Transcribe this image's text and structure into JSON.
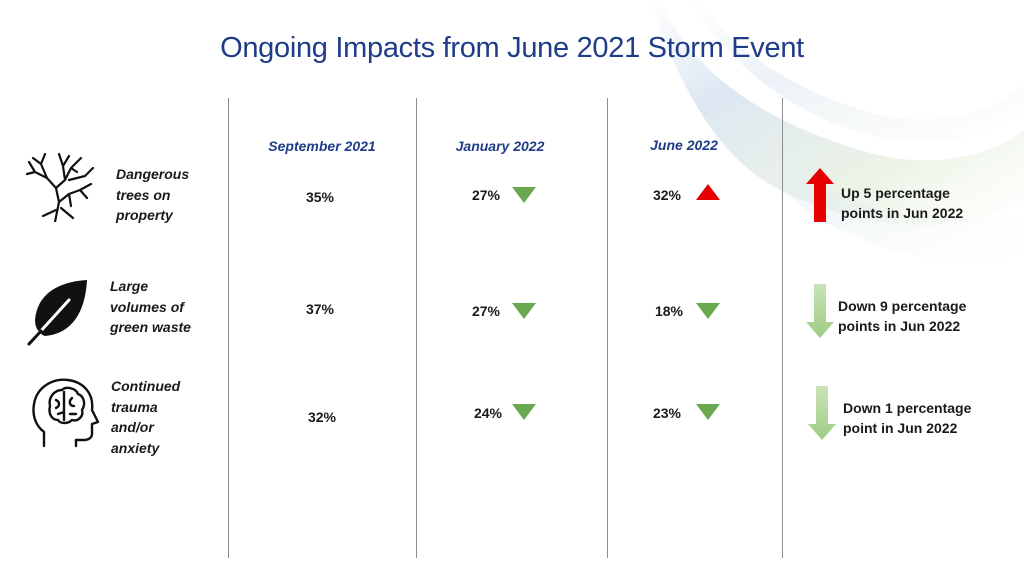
{
  "slide": {
    "title": "Ongoing Impacts from June 2021 Storm Event"
  },
  "columns": [
    {
      "label": "September 2021"
    },
    {
      "label": "January 2022"
    },
    {
      "label": "June 2022"
    }
  ],
  "rows": [
    {
      "icon": "dead-tree-icon",
      "label_lines": [
        "Dangerous",
        "trees on",
        "property"
      ],
      "values": [
        "35%",
        "27%",
        "32%"
      ],
      "trend": [
        null,
        "down",
        "up"
      ],
      "summary_lines": [
        "Up 5 percentage",
        "points in Jun 2022"
      ],
      "summary_direction": "up"
    },
    {
      "icon": "leaf-icon",
      "label_lines": [
        "Large",
        "volumes of",
        "green waste"
      ],
      "values": [
        "37%",
        "27%",
        "18%"
      ],
      "trend": [
        null,
        "down",
        "down"
      ],
      "summary_lines": [
        "Down 9 percentage",
        "points in Jun 2022"
      ],
      "summary_direction": "down"
    },
    {
      "icon": "head-brain-icon",
      "label_lines": [
        "Continued",
        "trauma",
        "and/or",
        "anxiety"
      ],
      "values": [
        "32%",
        "24%",
        "23%"
      ],
      "trend": [
        null,
        "down",
        "down"
      ],
      "summary_lines": [
        "Down 1 percentage",
        "point in Jun 2022"
      ],
      "summary_direction": "down"
    }
  ],
  "colors": {
    "title": "#1f3c88",
    "down_marker": "#6aa84f",
    "up_marker": "#e60000",
    "up_arrow": "#e60000",
    "down_arrow": "#a9d18e"
  }
}
